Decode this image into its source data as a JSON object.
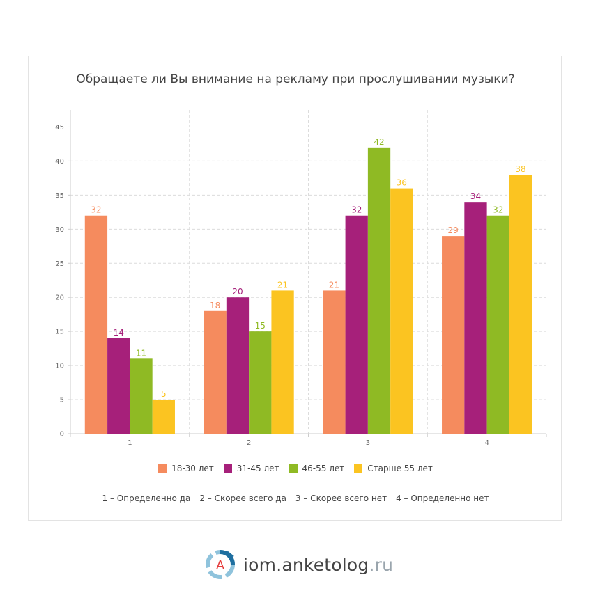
{
  "chart_data": {
    "type": "bar",
    "title": "Обращаете ли Вы внимание на рекламу при прослушивании музыки?",
    "categories": [
      "1",
      "2",
      "3",
      "4"
    ],
    "ylim": [
      0,
      47.5
    ],
    "yticks": [
      0,
      5,
      10,
      15,
      20,
      25,
      30,
      35,
      40,
      45
    ],
    "grid": true,
    "legend_position": "bottom",
    "series": [
      {
        "name": "18-30 лет",
        "color": "#f58b5e",
        "values": [
          32,
          18,
          21,
          29
        ]
      },
      {
        "name": "31-45 лет",
        "color": "#a6207a",
        "values": [
          14,
          20,
          32,
          34
        ]
      },
      {
        "name": "46-55 лет",
        "color": "#8fba24",
        "values": [
          11,
          15,
          42,
          32
        ]
      },
      {
        "name": "Старше 55 лет",
        "color": "#fbc421",
        "values": [
          5,
          21,
          36,
          38
        ]
      }
    ]
  },
  "footnotes": [
    "1 – Определенно да",
    "2 – Скорее всего да",
    "3 – Скорее всего нет",
    "4 – Определенно нет"
  ],
  "brand": {
    "logo_letter": "A",
    "name": "iom.anketolog",
    "tld": ".ru",
    "logo_icon": "anketolog-logo-icon"
  }
}
